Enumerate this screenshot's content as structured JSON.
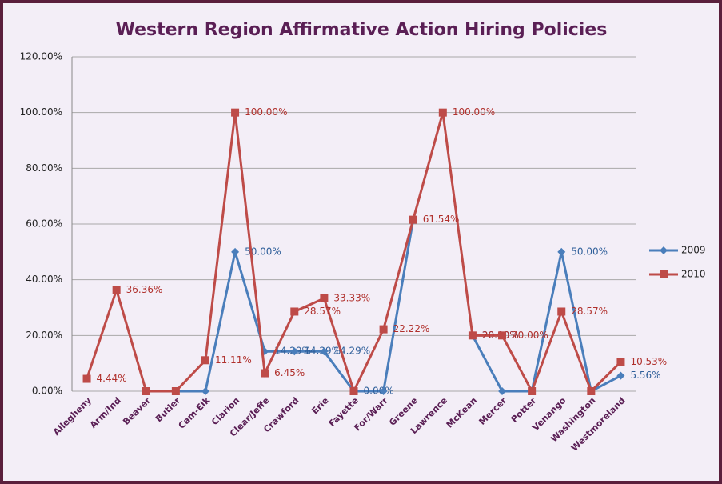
{
  "chart_data": {
    "type": "line",
    "title": "Western Region Affirmative Action Hiring Policies",
    "categories": [
      "Allegheny",
      "Arm/Ind",
      "Beaver",
      "Butler",
      "Cam-Elk",
      "Clarion",
      "Clear/Jeffe",
      "Crawford",
      "Erie",
      "Fayette",
      "For/Warr",
      "Greene",
      "Lawrence",
      "McKean",
      "Mercer",
      "Potter",
      "Venango",
      "Washington",
      "Westmoreland"
    ],
    "series": [
      {
        "name": "2009",
        "color": "#4a7ebb",
        "values": [
          null,
          null,
          null,
          0,
          0,
          50,
          14.29,
          14.29,
          14.29,
          0,
          0,
          61.54,
          null,
          20,
          0,
          0,
          50,
          0,
          5.56
        ],
        "value_labels": [
          null,
          null,
          null,
          null,
          null,
          "50.00%",
          "14.29%",
          "14.29%",
          "14.29%",
          "0.00%",
          null,
          null,
          null,
          "20.00%",
          null,
          null,
          "50.00%",
          null,
          "5.56%"
        ]
      },
      {
        "name": "2010",
        "color": "#be4b48",
        "values": [
          4.44,
          36.36,
          0,
          0,
          11.11,
          100,
          6.45,
          28.57,
          33.33,
          0,
          22.22,
          61.54,
          100,
          20,
          20,
          0,
          28.57,
          0,
          10.53
        ],
        "value_labels": [
          "4.44%",
          "36.36%",
          null,
          null,
          "11.11%",
          "100.00%",
          "6.45%",
          "28.57%",
          "33.33%",
          null,
          "22.22%",
          "61.54%",
          "100.00%",
          "20.00%",
          "20.00%",
          null,
          "28.57%",
          null,
          "10.53%"
        ]
      }
    ],
    "ylim": [
      0,
      120
    ],
    "yticks": [
      {
        "value": 0,
        "label": "0.00%"
      },
      {
        "value": 20,
        "label": "20.00%"
      },
      {
        "value": 40,
        "label": "40.00%"
      },
      {
        "value": 60,
        "label": "60.00%"
      },
      {
        "value": 80,
        "label": "80.00%"
      },
      {
        "value": 100,
        "label": "100.00%"
      },
      {
        "value": 120,
        "label": "120.00%"
      }
    ],
    "grid": true,
    "legend": "right"
  }
}
